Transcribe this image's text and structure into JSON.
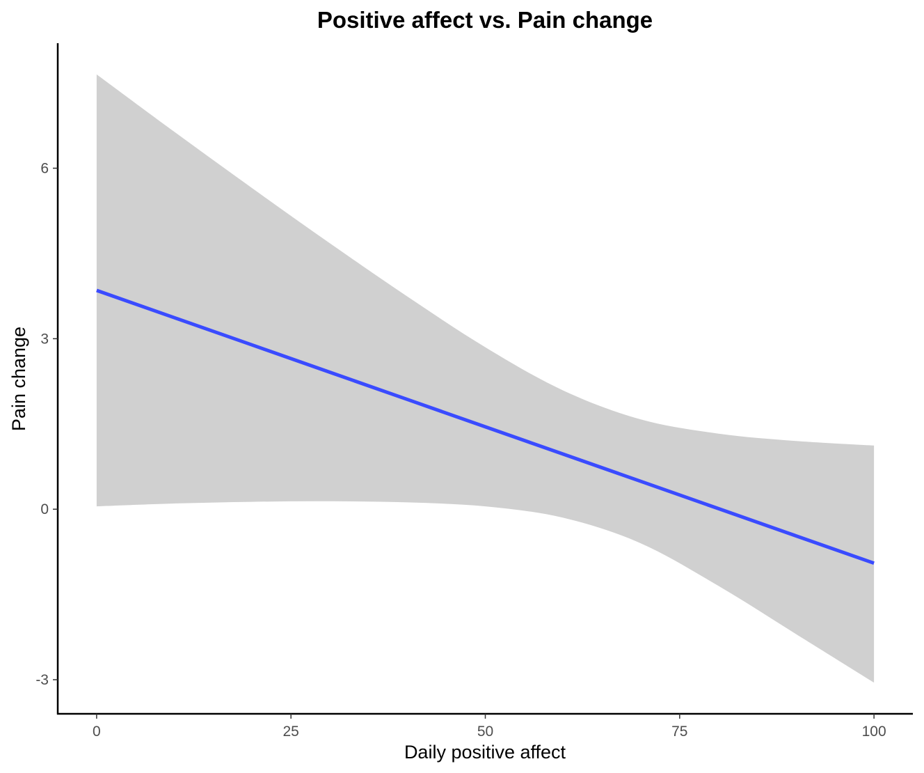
{
  "chart_data": {
    "type": "line",
    "title": "Positive affect vs. Pain change",
    "xlabel": "Daily positive affect",
    "ylabel": "Pain change",
    "xlim": [
      -5,
      105
    ],
    "ylim": [
      -3.6,
      8.2
    ],
    "x_ticks": [
      0,
      25,
      50,
      75,
      100
    ],
    "y_ticks": [
      -3,
      0,
      3,
      6
    ],
    "grid": false,
    "legend": "none",
    "line_color": "#3A4BFF",
    "ribbon_color": "#D0D0D0",
    "series": [
      {
        "x": [
          0,
          10,
          20,
          30,
          40,
          50,
          60,
          70,
          80,
          90,
          100
        ],
        "y": [
          3.85,
          3.37,
          2.89,
          2.41,
          1.93,
          1.45,
          0.97,
          0.49,
          0.01,
          -0.47,
          -0.95
        ],
        "lower": [
          0.05,
          0.1,
          0.13,
          0.14,
          0.12,
          0.05,
          -0.15,
          -0.6,
          -1.35,
          -2.2,
          -3.05
        ],
        "upper": [
          7.65,
          6.64,
          5.65,
          4.68,
          3.74,
          2.85,
          2.09,
          1.58,
          1.33,
          1.2,
          1.12
        ]
      }
    ]
  }
}
